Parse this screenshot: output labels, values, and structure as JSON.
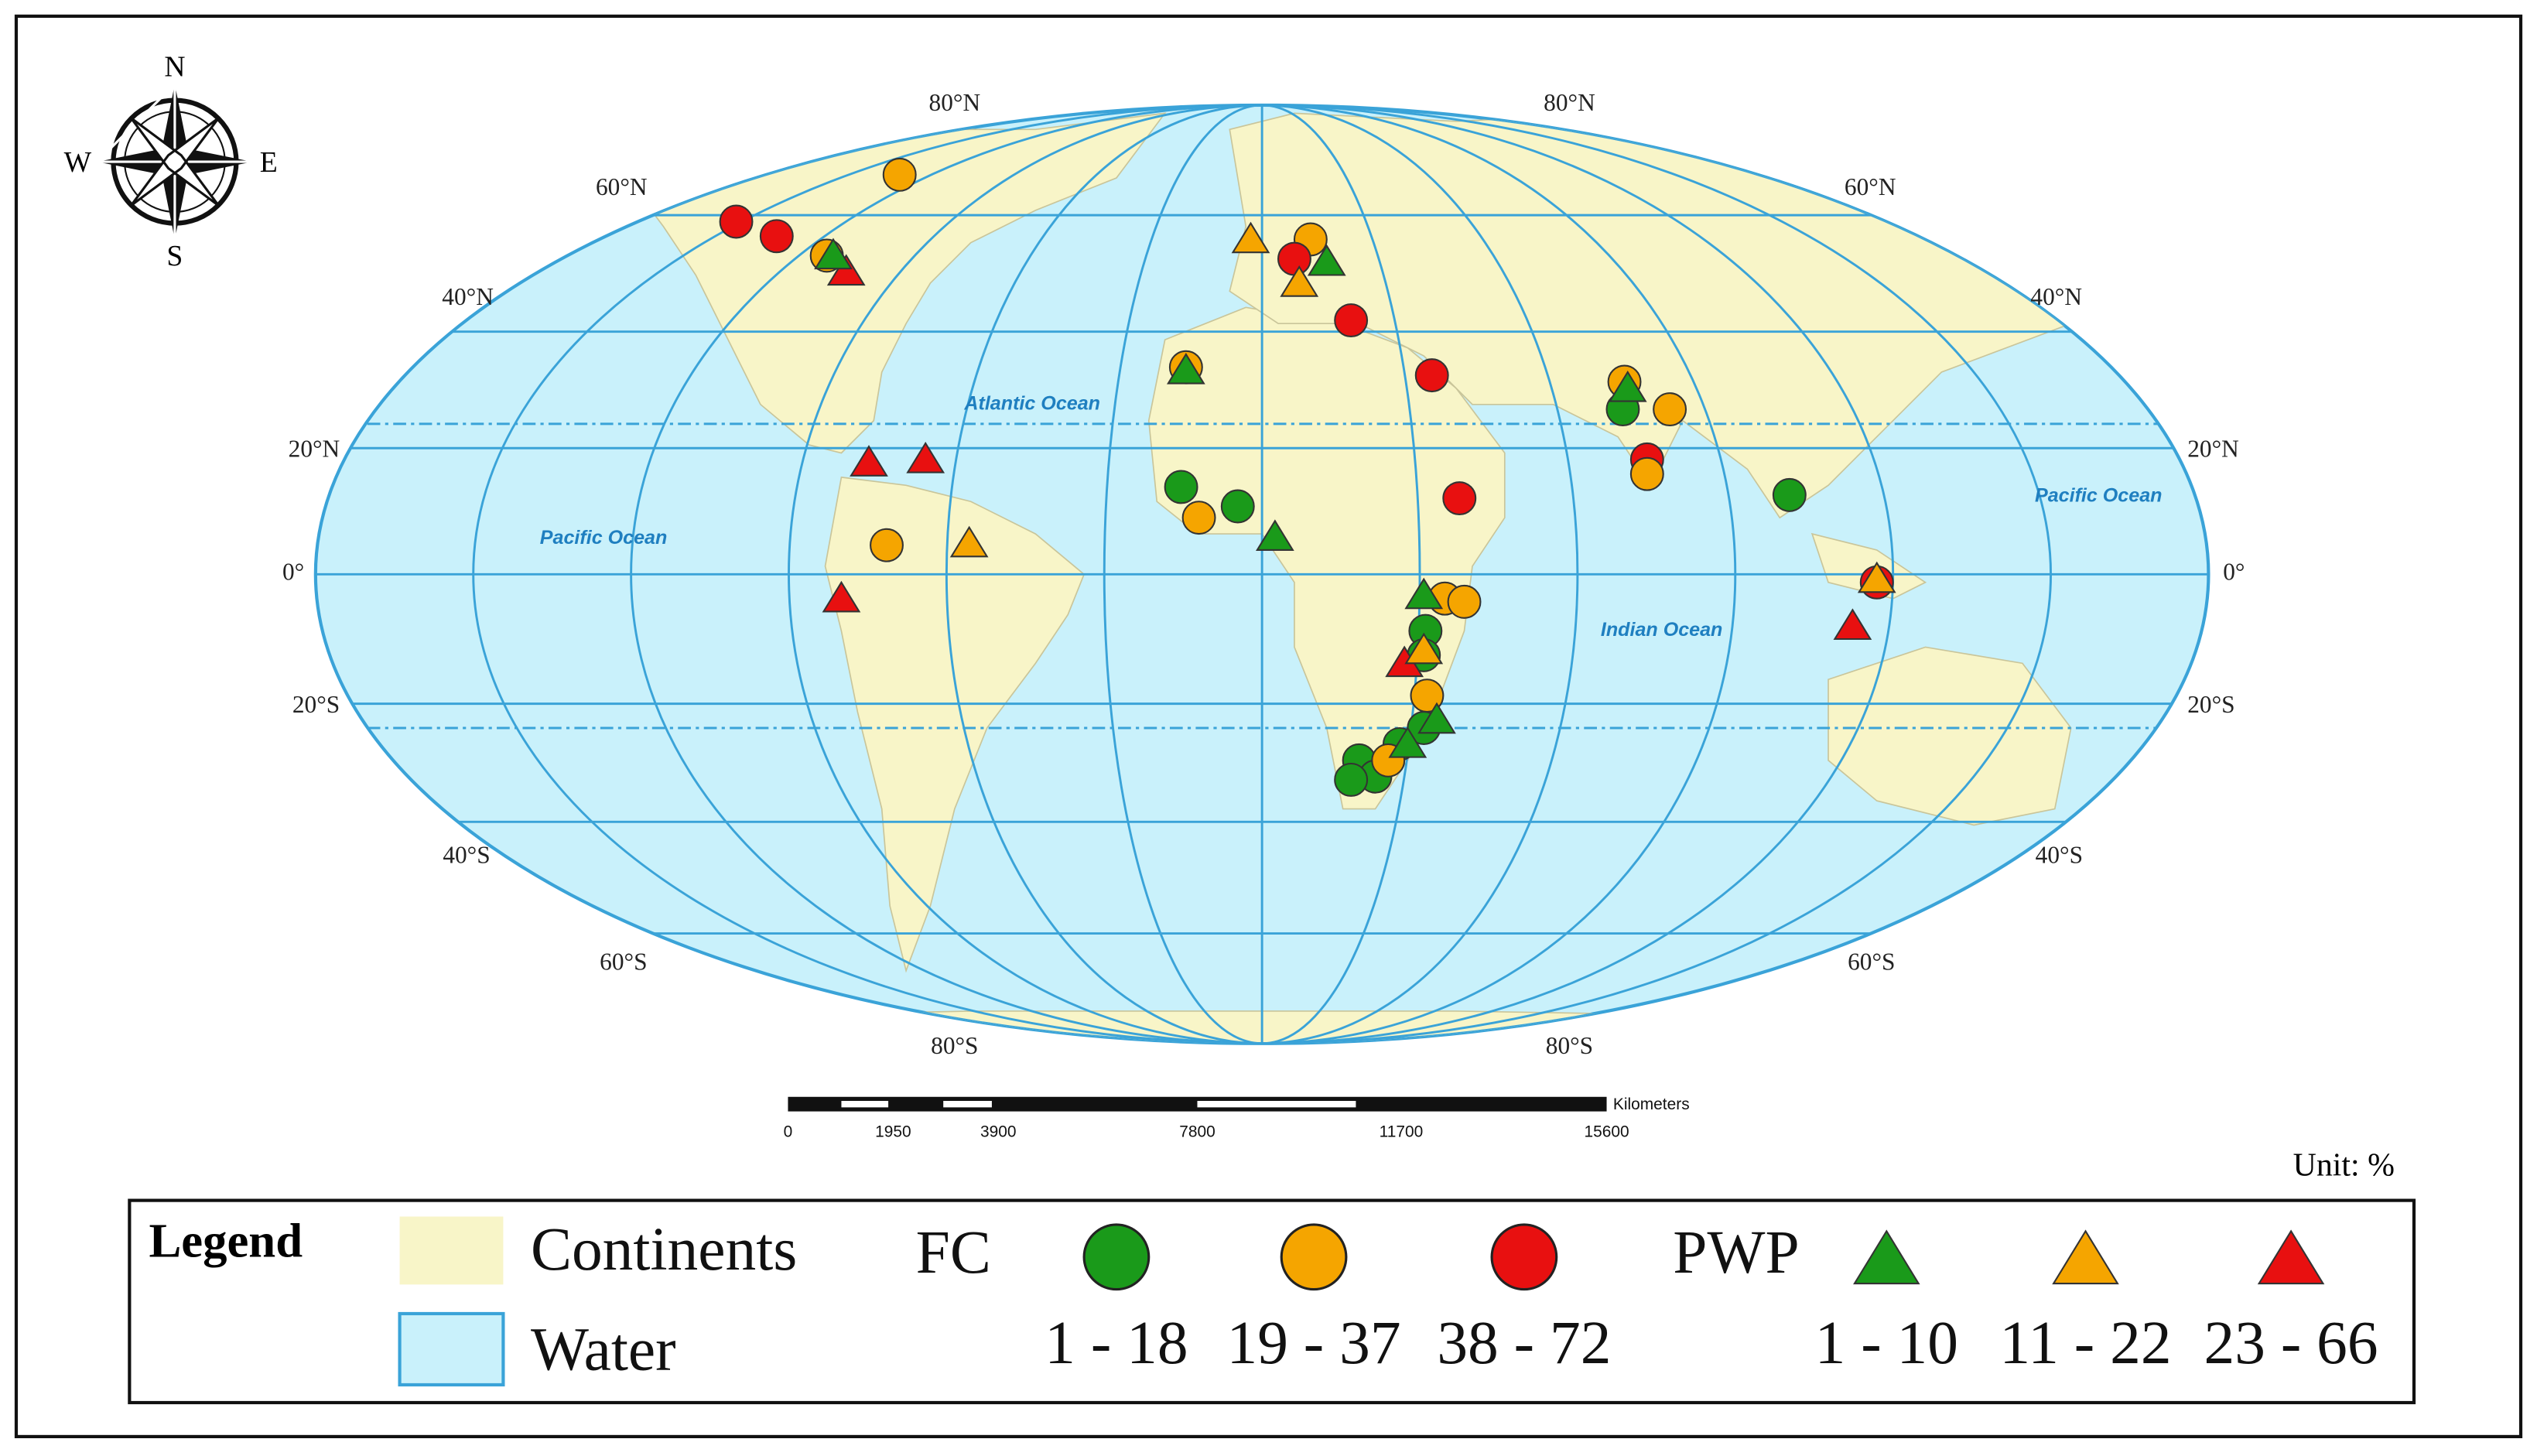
{
  "compass": {
    "north": "N",
    "south": "S",
    "east": "E",
    "west": "W"
  },
  "map": {
    "latitude_labels": [
      "80°N",
      "80°N",
      "60°N",
      "60°N",
      "40°N",
      "40°N",
      "20°N",
      "20°N",
      "0°",
      "0°",
      "20°S",
      "20°S",
      "40°S",
      "40°S",
      "60°S",
      "60°S",
      "80°S",
      "80°S"
    ],
    "oceans": [
      "Atlantic Ocean",
      "Pacific Ocean",
      "Pacific Ocean",
      "Indian Ocean"
    ]
  },
  "scale_bar": {
    "unit": "Kilometers",
    "labels": [
      "0",
      "1950",
      "3900",
      "7800",
      "11700",
      "15600"
    ]
  },
  "unit_note": "Unit: %",
  "legend": {
    "title": "Legend",
    "continents": "Continents",
    "water": "Water",
    "fc": {
      "label": "FC",
      "classes": [
        "1 - 18",
        "19 - 37",
        "38 - 72"
      ]
    },
    "pwp": {
      "label": "PWP",
      "classes": [
        "1 - 10",
        "11 - 22",
        "23 - 66"
      ]
    }
  }
}
